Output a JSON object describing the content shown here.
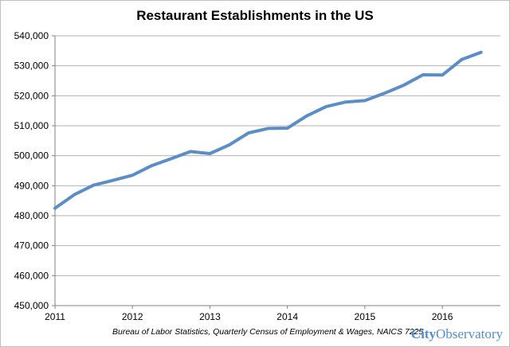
{
  "chart_data": {
    "type": "line",
    "title": "Restaurant Establishments in the US",
    "xlabel": "",
    "ylabel": "",
    "x_tick_labels": [
      "2011",
      "2012",
      "2013",
      "2014",
      "2015",
      "2016"
    ],
    "xlim": [
      2011,
      2016.75
    ],
    "ylim": [
      450000,
      540000
    ],
    "y_ticks": [
      450000,
      460000,
      470000,
      480000,
      490000,
      500000,
      510000,
      520000,
      530000,
      540000
    ],
    "y_tick_labels": [
      "450,000",
      "460,000",
      "470,000",
      "480,000",
      "490,000",
      "500,000",
      "510,000",
      "520,000",
      "530,000",
      "540,000"
    ],
    "grid": true,
    "series": [
      {
        "name": "Restaurant Establishments",
        "color": "#5b8ec6",
        "x": [
          2011.0,
          2011.25,
          2011.5,
          2011.75,
          2012.0,
          2012.25,
          2012.5,
          2012.75,
          2013.0,
          2013.25,
          2013.5,
          2013.75,
          2014.0,
          2014.25,
          2014.5,
          2014.75,
          2015.0,
          2015.25,
          2015.5,
          2015.75,
          2016.0,
          2016.25,
          2016.5
        ],
        "y": [
          482500,
          487000,
          490200,
          491800,
          493500,
          496700,
          499000,
          501400,
          500700,
          503600,
          507600,
          509100,
          509200,
          513300,
          516400,
          517900,
          518400,
          520800,
          523500,
          527000,
          526900,
          532100,
          534500
        ]
      }
    ]
  },
  "source_note": "Bureau of Labor Statistics, Quarterly Census of Employment & Wages, NAICS 7225",
  "logo": {
    "part1": "City",
    "part2": "Observatory",
    "color": "#4f8fd0"
  }
}
